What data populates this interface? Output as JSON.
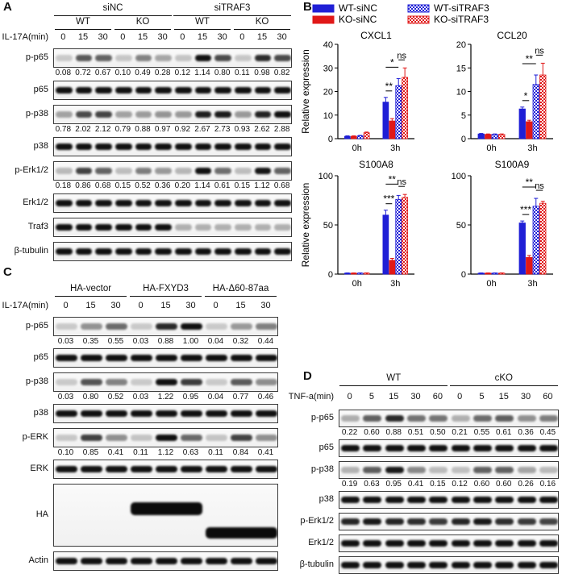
{
  "panelA": {
    "letter": "A",
    "groups": [
      {
        "label": "siNC"
      },
      {
        "label": "siTRAF3"
      }
    ],
    "genotypes": [
      "WT",
      "KO",
      "WT",
      "KO"
    ],
    "time_label": "IL-17A(min)",
    "times": [
      "0",
      "15",
      "30",
      "0",
      "15",
      "30",
      "0",
      "15",
      "30",
      "0",
      "15",
      "30"
    ],
    "rows": [
      {
        "label": "p-p65",
        "intensities": [
          0.08,
          0.72,
          0.67,
          0.1,
          0.49,
          0.28,
          0.12,
          1.14,
          0.8,
          0.11,
          0.98,
          0.82
        ],
        "quant": [
          "0.08",
          "0.72",
          "0.67",
          "0.10",
          "0.49",
          "0.28",
          "0.12",
          "1.14",
          "0.80",
          "0.11",
          "0.98",
          "0.82"
        ]
      },
      {
        "label": "p65",
        "intensities": [
          1,
          1,
          1,
          1,
          1,
          1,
          1,
          1,
          1,
          1,
          1,
          1
        ],
        "quant": null
      },
      {
        "label": "p-p38",
        "intensities": [
          0.78,
          2.02,
          2.12,
          0.79,
          0.88,
          0.97,
          0.92,
          2.67,
          2.73,
          0.93,
          2.62,
          2.88
        ],
        "quant": [
          "0.78",
          "2.02",
          "2.12",
          "0.79",
          "0.88",
          "0.97",
          "0.92",
          "2.67",
          "2.73",
          "0.93",
          "2.62",
          "2.88"
        ]
      },
      {
        "label": "p38",
        "intensities": [
          1,
          1,
          1,
          1,
          1,
          1,
          1,
          1,
          1,
          1,
          1,
          1
        ],
        "quant": null
      },
      {
        "label": "p-Erk1/2",
        "intensities": [
          0.18,
          0.86,
          0.68,
          0.15,
          0.52,
          0.36,
          0.2,
          1.14,
          0.61,
          0.15,
          1.12,
          0.68
        ],
        "quant": [
          "0.18",
          "0.86",
          "0.68",
          "0.15",
          "0.52",
          "0.36",
          "0.20",
          "1.14",
          "0.61",
          "0.15",
          "1.12",
          "0.68"
        ]
      },
      {
        "label": "Erk1/2",
        "intensities": [
          1,
          1,
          1,
          1,
          1,
          1,
          1,
          1,
          1,
          1,
          1,
          1
        ],
        "quant": null
      },
      {
        "label": "Traf3",
        "intensities": [
          1,
          1,
          1,
          1,
          1,
          1,
          0.2,
          0.2,
          0.2,
          0.2,
          0.2,
          0.2
        ],
        "quant": null
      },
      {
        "label": "β-tubulin",
        "intensities": [
          1,
          1,
          1,
          1,
          1,
          1,
          1,
          1,
          1,
          1,
          1,
          1
        ],
        "quant": null
      }
    ]
  },
  "panelB": {
    "letter": "B",
    "legend": [
      "WT-siNC",
      "KO-siNC",
      "WT-siTRAF3",
      "KO-siTRAF3"
    ],
    "ylabel": "Relative expression",
    "x_categories": [
      "0h",
      "3h"
    ],
    "colors": {
      "WT-siNC": "#1f1fd6",
      "KO-siNC": "#e01818",
      "WT-siTRAF3": "#1f1fd6",
      "KO-siTRAF3": "#e01818"
    }
  },
  "chart_data": [
    {
      "type": "bar",
      "title": "CXCL1",
      "ylabel": "Relative expression",
      "categories": [
        "0h",
        "3h"
      ],
      "ylim": [
        0,
        40
      ],
      "yticks": [
        0,
        10,
        20,
        30,
        40
      ],
      "series": [
        {
          "name": "WT-siNC",
          "values": [
            1,
            15.5
          ],
          "errors": [
            0.2,
            2
          ]
        },
        {
          "name": "KO-siNC",
          "values": [
            1,
            7.5
          ],
          "errors": [
            0.2,
            1
          ]
        },
        {
          "name": "WT-siTRAF3",
          "values": [
            1.2,
            22.5
          ],
          "errors": [
            0.2,
            3
          ]
        },
        {
          "name": "KO-siTRAF3",
          "values": [
            2.5,
            26
          ],
          "errors": [
            0.3,
            4
          ]
        }
      ],
      "significance": [
        "**",
        "*",
        "ns"
      ]
    },
    {
      "type": "bar",
      "title": "CCL20",
      "ylabel": "",
      "categories": [
        "0h",
        "3h"
      ],
      "ylim": [
        0,
        20
      ],
      "yticks": [
        0,
        5,
        10,
        15,
        20
      ],
      "series": [
        {
          "name": "WT-siNC",
          "values": [
            1,
            6.3
          ],
          "errors": [
            0.1,
            0.4
          ]
        },
        {
          "name": "KO-siNC",
          "values": [
            0.9,
            3.6
          ],
          "errors": [
            0.1,
            0.3
          ]
        },
        {
          "name": "WT-siTRAF3",
          "values": [
            0.9,
            11.5
          ],
          "errors": [
            0.1,
            2
          ]
        },
        {
          "name": "KO-siTRAF3",
          "values": [
            0.9,
            13.5
          ],
          "errors": [
            0.1,
            2.5
          ]
        }
      ],
      "significance": [
        "*",
        "**",
        "ns"
      ]
    },
    {
      "type": "bar",
      "title": "S100A8",
      "ylabel": "Relative expression",
      "categories": [
        "0h",
        "3h"
      ],
      "ylim": [
        0,
        100
      ],
      "yticks": [
        0,
        50,
        100
      ],
      "series": [
        {
          "name": "WT-siNC",
          "values": [
            1,
            60
          ],
          "errors": [
            0.2,
            5
          ]
        },
        {
          "name": "KO-siNC",
          "values": [
            1,
            14
          ],
          "errors": [
            0.2,
            2
          ]
        },
        {
          "name": "WT-siTRAF3",
          "values": [
            1,
            76
          ],
          "errors": [
            0.2,
            4
          ]
        },
        {
          "name": "KO-siTRAF3",
          "values": [
            1,
            78
          ],
          "errors": [
            0.2,
            3
          ]
        }
      ],
      "significance": [
        "***",
        "**",
        "ns"
      ]
    },
    {
      "type": "bar",
      "title": "S100A9",
      "ylabel": "",
      "categories": [
        "0h",
        "3h"
      ],
      "ylim": [
        0,
        100
      ],
      "yticks": [
        0,
        50,
        100
      ],
      "series": [
        {
          "name": "WT-siNC",
          "values": [
            1,
            52
          ],
          "errors": [
            0.2,
            2
          ]
        },
        {
          "name": "KO-siNC",
          "values": [
            1,
            17
          ],
          "errors": [
            0.2,
            2
          ]
        },
        {
          "name": "WT-siTRAF3",
          "values": [
            1,
            69
          ],
          "errors": [
            0.2,
            8
          ]
        },
        {
          "name": "KO-siTRAF3",
          "values": [
            1,
            72
          ],
          "errors": [
            0.2,
            2
          ]
        }
      ],
      "significance": [
        "***",
        "**",
        "ns"
      ]
    }
  ],
  "panelC": {
    "letter": "C",
    "groups": [
      {
        "label": "HA-vector"
      },
      {
        "label": "HA-FXYD3"
      },
      {
        "label": "HA-Δ60-87aa"
      }
    ],
    "time_label": "IL-17A(min)",
    "times": [
      "0",
      "15",
      "30",
      "0",
      "15",
      "30",
      "0",
      "15",
      "30"
    ],
    "rows": [
      {
        "label": "p-p65",
        "intensities": [
          0.03,
          0.35,
          0.55,
          0.03,
          0.88,
          1.0,
          0.04,
          0.32,
          0.44
        ],
        "quant": [
          "0.03",
          "0.35",
          "0.55",
          "0.03",
          "0.88",
          "1.00",
          "0.04",
          "0.32",
          "0.44"
        ]
      },
      {
        "label": "p65",
        "intensities": [
          1,
          1,
          1,
          1,
          1,
          1,
          1,
          1,
          1
        ],
        "quant": null
      },
      {
        "label": "p-p38",
        "intensities": [
          0.03,
          0.8,
          0.52,
          0.03,
          1.22,
          0.95,
          0.04,
          0.77,
          0.46
        ],
        "quant": [
          "0.03",
          "0.80",
          "0.52",
          "0.03",
          "1.22",
          "0.95",
          "0.04",
          "0.77",
          "0.46"
        ]
      },
      {
        "label": "p38",
        "intensities": [
          1,
          1,
          1,
          1,
          1,
          1,
          1,
          1,
          1
        ],
        "quant": null
      },
      {
        "label": "p-ERK",
        "intensities": [
          0.1,
          0.85,
          0.41,
          0.11,
          1.12,
          0.63,
          0.11,
          0.84,
          0.41
        ],
        "quant": [
          "0.10",
          "0.85",
          "0.41",
          "0.11",
          "1.12",
          "0.63",
          "0.11",
          "0.84",
          "0.41"
        ]
      },
      {
        "label": "ERK",
        "intensities": [
          1,
          1,
          1,
          1,
          1,
          1,
          1,
          1,
          1
        ],
        "quant": null
      },
      {
        "label": "HA",
        "intensities": [
          0,
          0,
          0,
          1,
          1,
          1,
          1,
          1,
          1
        ],
        "quant": null
      },
      {
        "label": "Actin",
        "intensities": [
          1,
          1,
          1,
          1,
          1,
          1,
          1,
          1,
          1
        ],
        "quant": null
      }
    ]
  },
  "panelD": {
    "letter": "D",
    "groups": [
      {
        "label": "WT"
      },
      {
        "label": "cKO"
      }
    ],
    "time_label": "TNF-a(min)",
    "times": [
      "0",
      "5",
      "15",
      "30",
      "60",
      "0",
      "5",
      "15",
      "30",
      "60"
    ],
    "rows": [
      {
        "label": "p-p65",
        "intensities": [
          0.22,
          0.6,
          0.88,
          0.51,
          0.5,
          0.21,
          0.55,
          0.61,
          0.36,
          0.45
        ],
        "quant": [
          "0.22",
          "0.60",
          "0.88",
          "0.51",
          "0.50",
          "0.21",
          "0.55",
          "0.61",
          "0.36",
          "0.45"
        ]
      },
      {
        "label": "p65",
        "intensities": [
          1,
          1,
          1,
          1,
          1,
          1,
          1,
          1,
          1,
          1
        ],
        "quant": null
      },
      {
        "label": "p-p38",
        "intensities": [
          0.19,
          0.63,
          0.95,
          0.41,
          0.15,
          0.12,
          0.6,
          0.6,
          0.26,
          0.16
        ],
        "quant": [
          "0.19",
          "0.63",
          "0.95",
          "0.41",
          "0.15",
          "0.12",
          "0.60",
          "0.60",
          "0.26",
          "0.16"
        ]
      },
      {
        "label": "p38",
        "intensities": [
          1,
          1,
          1,
          1,
          1,
          1,
          1,
          1,
          1,
          1
        ],
        "quant": null
      },
      {
        "label": "p-Erk1/2",
        "intensities": [
          0.9,
          0.95,
          0.9,
          0.85,
          0.8,
          0.9,
          0.95,
          0.85,
          0.8,
          0.75
        ],
        "quant": null
      },
      {
        "label": "Erk1/2",
        "intensities": [
          1,
          1,
          1,
          1,
          1,
          1,
          1,
          1,
          1,
          1
        ],
        "quant": null
      },
      {
        "label": "β-tubulin",
        "intensities": [
          1,
          1,
          1,
          1,
          1,
          1,
          1,
          1,
          1,
          1
        ],
        "quant": null
      }
    ]
  }
}
